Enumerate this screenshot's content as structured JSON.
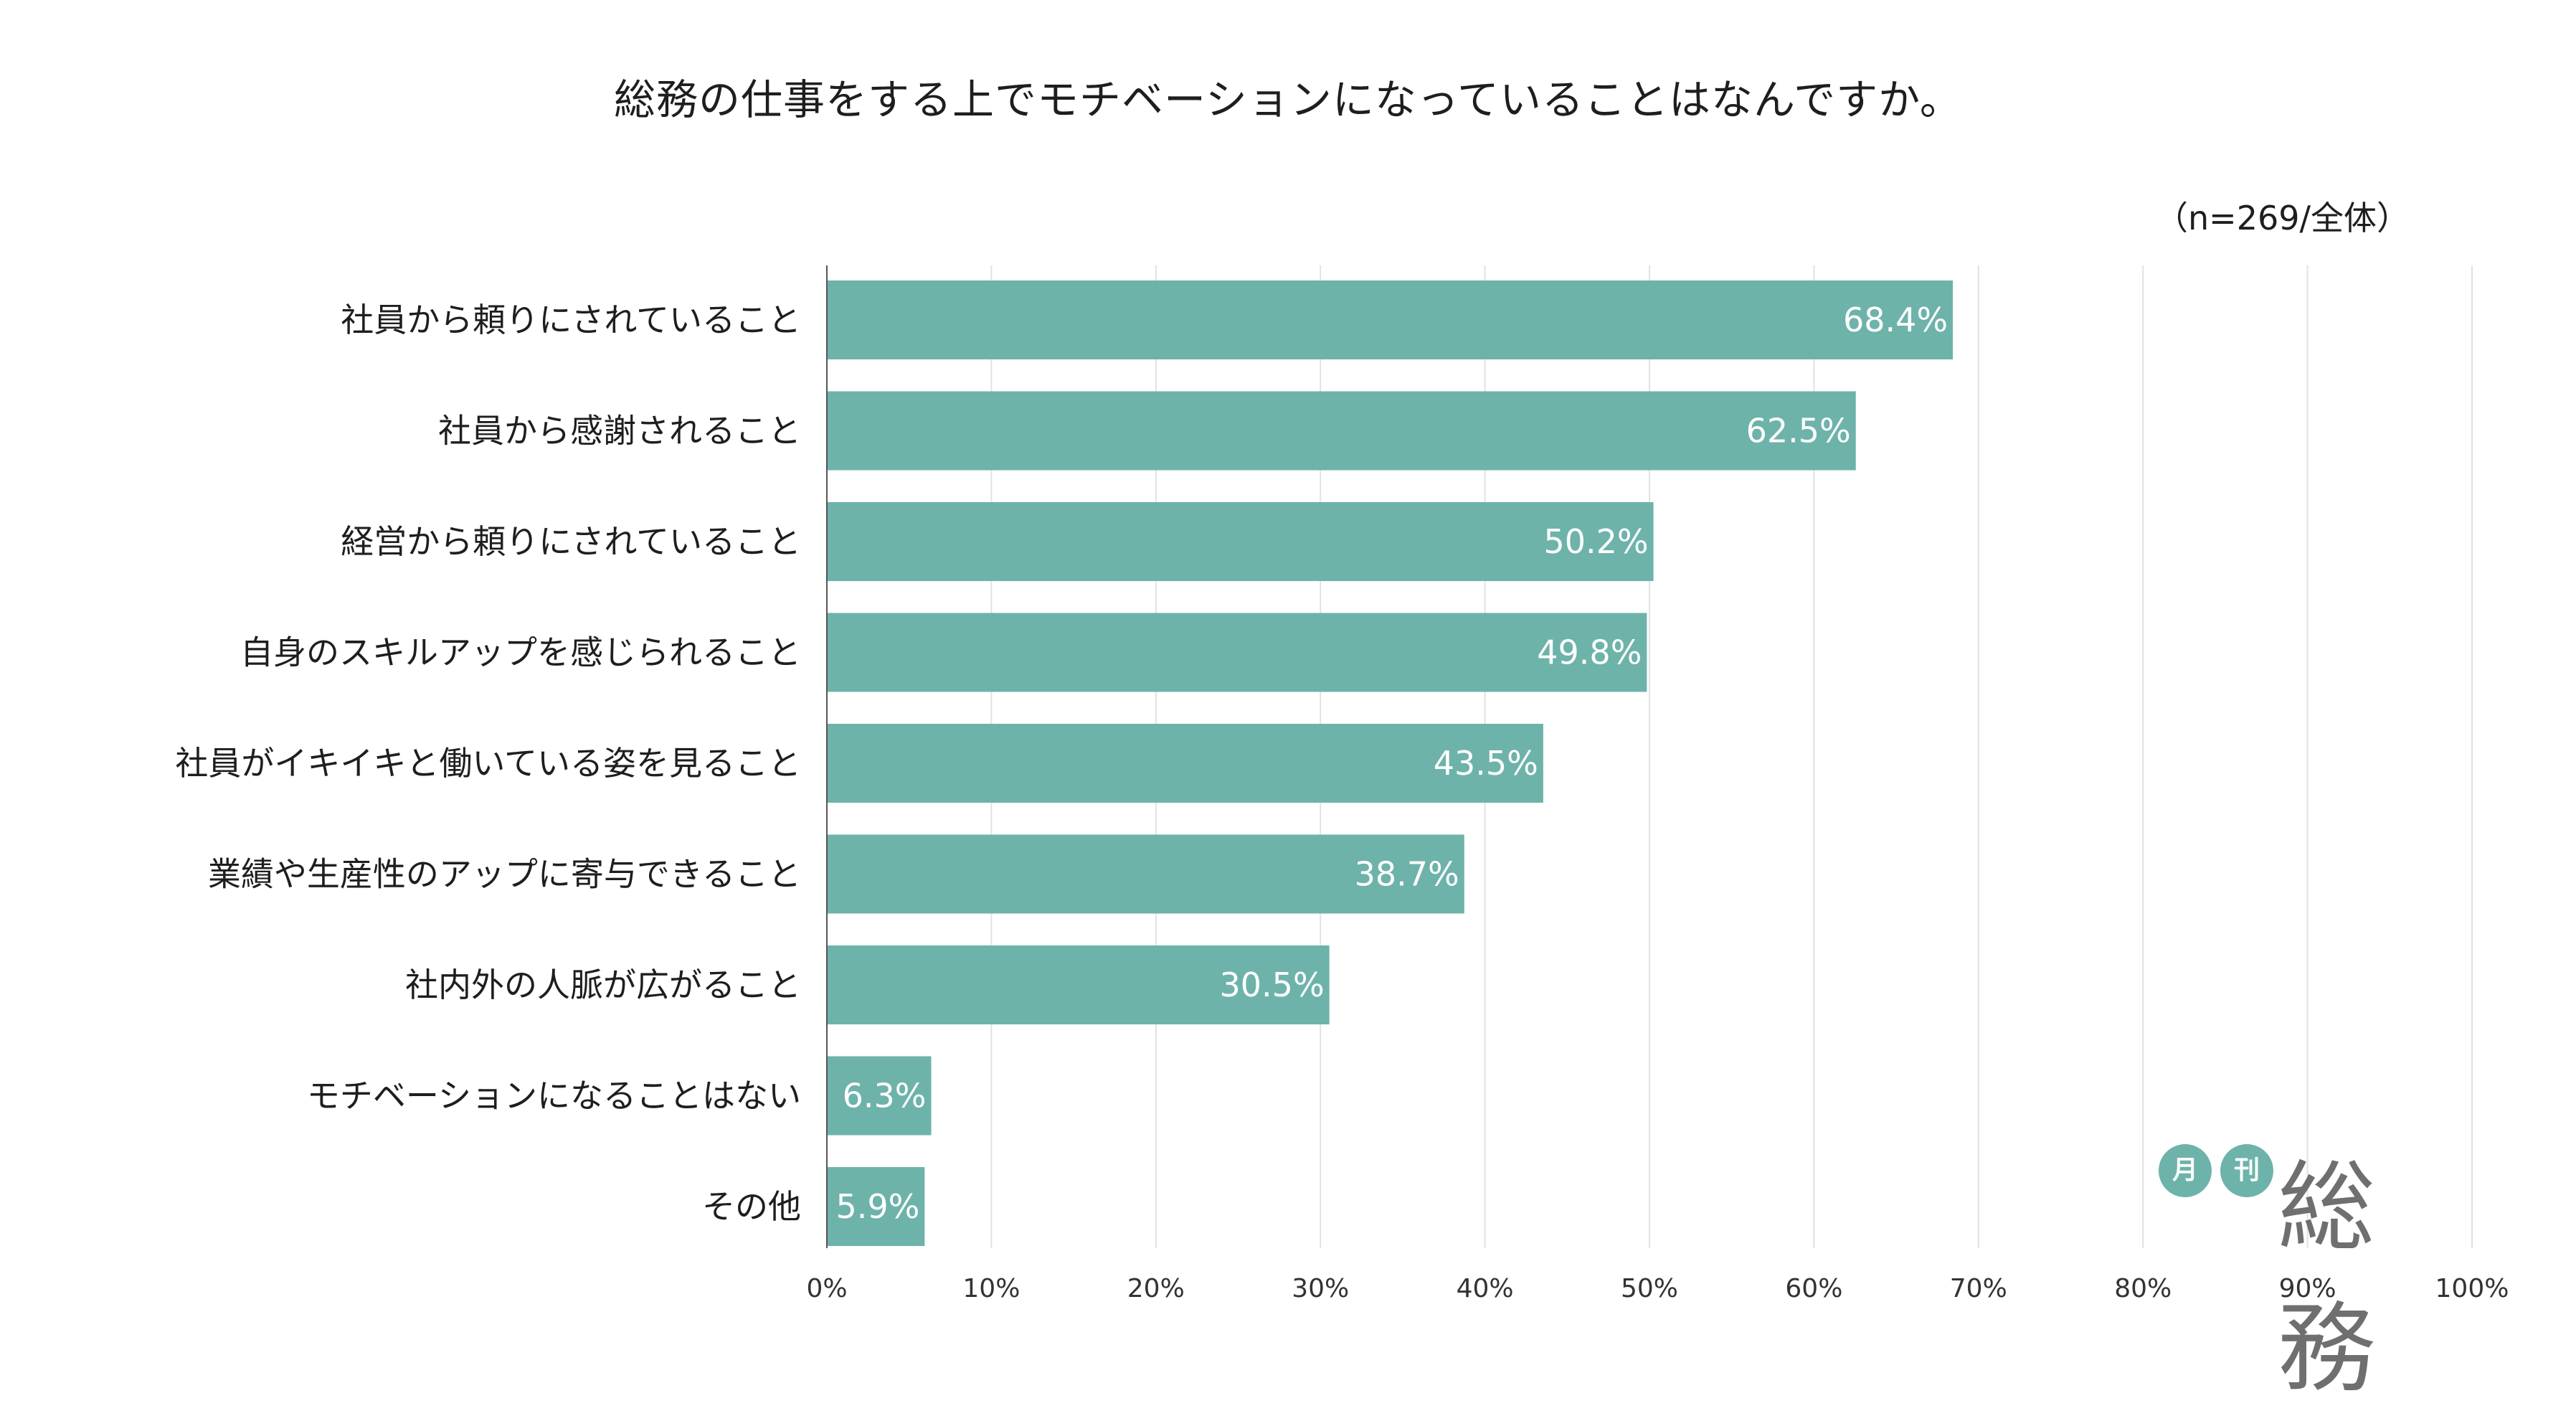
{
  "chart_data": {
    "type": "bar",
    "orientation": "horizontal",
    "title": "総務の仕事をする上でモチベーションになっていることはなんですか。",
    "note": "（n=269/全体）",
    "categories": [
      "社員から頼りにされていること",
      "社員から感謝されること",
      "経営から頼りにされていること",
      "自身のスキルアップを感じられること",
      "社員がイキイキと働いている姿を見ること",
      "業績や生産性のアップに寄与できること",
      "社内外の人脈が広がること",
      "モチベーションになることはない",
      "その他"
    ],
    "values": [
      68.4,
      62.5,
      50.2,
      49.8,
      43.5,
      38.7,
      30.5,
      6.3,
      5.9
    ],
    "value_labels": [
      "68.4%",
      "62.5%",
      "50.2%",
      "49.8%",
      "43.5%",
      "38.7%",
      "30.5%",
      "6.3%",
      "5.9%"
    ],
    "xlim": [
      0,
      100
    ],
    "xticks": [
      0,
      10,
      20,
      30,
      40,
      50,
      60,
      70,
      80,
      90,
      100
    ],
    "xtick_labels": [
      "0%",
      "10%",
      "20%",
      "30%",
      "40%",
      "50%",
      "60%",
      "70%",
      "80%",
      "90%",
      "100%"
    ],
    "grid": true,
    "bar_color": "#6db3aa"
  },
  "logo": {
    "badge1": "月",
    "badge2": "刊",
    "name": "総務"
  }
}
